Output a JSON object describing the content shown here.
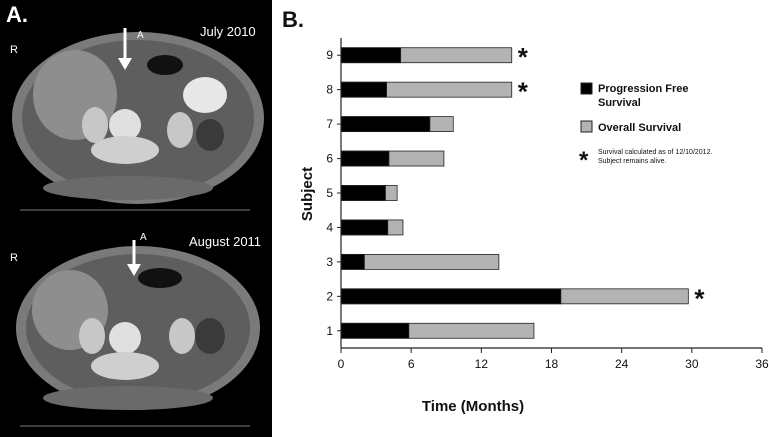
{
  "panel_a": {
    "label": "A.",
    "scans": [
      {
        "date": "July 2010",
        "side_marker": "R",
        "arrow_marker": "A"
      },
      {
        "date": "August 2011",
        "side_marker": "R",
        "arrow_marker": "A"
      }
    ]
  },
  "panel_b_label": "B.",
  "colors": {
    "progression_free": "#000000",
    "overall": "#b3b3b3",
    "bar_stroke": "#222222"
  },
  "chart_data": {
    "type": "bar",
    "orientation": "horizontal",
    "stacked": "overlay",
    "categories": [
      "1",
      "2",
      "3",
      "4",
      "5",
      "6",
      "7",
      "8",
      "9"
    ],
    "series": [
      {
        "name": "Progression Free Survival",
        "values": [
          5.8,
          18.8,
          2.0,
          4.0,
          3.8,
          4.1,
          7.6,
          3.9,
          5.1
        ]
      },
      {
        "name": "Overall Survival",
        "values": [
          16.5,
          29.7,
          13.5,
          5.3,
          4.8,
          8.8,
          9.6,
          14.6,
          14.6
        ]
      }
    ],
    "alive_marker_subjects": [
      "2",
      "8",
      "9"
    ],
    "xlabel": "Time (Months)",
    "ylabel": "Subject",
    "xlim": [
      0,
      36
    ],
    "xticks": [
      "0",
      "6",
      "12",
      "18",
      "24",
      "30",
      "36"
    ],
    "grid": false,
    "legend_position": "right",
    "legend": [
      {
        "line1": "Progression Free",
        "line2": "Survival"
      },
      {
        "line1": "Overall Survival",
        "line2": ""
      }
    ],
    "asterisk": "*",
    "asterisk_note": [
      "Survival calculated as of 12/10/2012.",
      "Subject remains alive."
    ]
  }
}
